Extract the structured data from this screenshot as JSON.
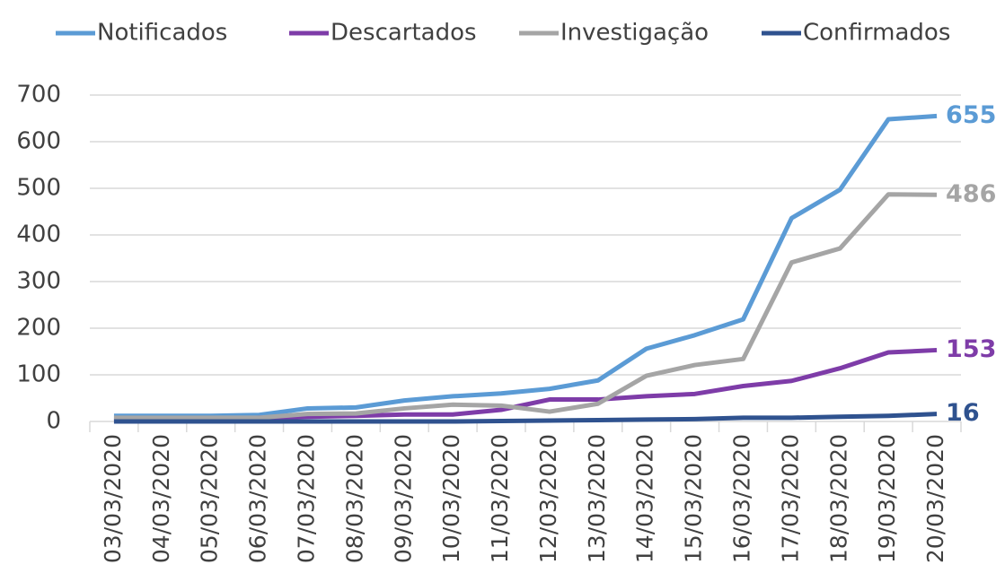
{
  "chart_data": {
    "type": "line",
    "categories": [
      "03/03/2020",
      "04/03/2020",
      "05/03/2020",
      "06/03/2020",
      "07/03/2020",
      "08/03/2020",
      "09/03/2020",
      "10/03/2020",
      "11/03/2020",
      "12/03/2020",
      "13/03/2020",
      "14/03/2020",
      "15/03/2020",
      "16/03/2020",
      "17/03/2020",
      "18/03/2020",
      "19/03/2020",
      "20/03/2020"
    ],
    "series": [
      {
        "name": "Notificados",
        "color": "#5b9bd5",
        "values": [
          12,
          12,
          12,
          14,
          28,
          30,
          45,
          54,
          60,
          70,
          88,
          156,
          185,
          219,
          436,
          497,
          648,
          655
        ]
      },
      {
        "name": "Descartados",
        "color": "#7e3ca8",
        "values": [
          2,
          3,
          5,
          8,
          10,
          12,
          15,
          15,
          25,
          47,
          47,
          54,
          59,
          76,
          87,
          114,
          148,
          153
        ]
      },
      {
        "name": "Investigação",
        "color": "#a5a5a5",
        "values": [
          8,
          8,
          8,
          8,
          16,
          17,
          28,
          36,
          34,
          21,
          38,
          98,
          121,
          134,
          341,
          371,
          487,
          486
        ]
      },
      {
        "name": "Confirmados",
        "color": "#2f528f",
        "values": [
          0,
          0,
          0,
          0,
          0,
          0,
          0,
          0,
          1,
          2,
          3,
          4,
          5,
          8,
          8,
          10,
          12,
          16
        ]
      }
    ],
    "ylim": [
      0,
      700
    ],
    "yticks": [
      0,
      100,
      200,
      300,
      400,
      500,
      600,
      700
    ],
    "grid": true,
    "legend": "top"
  }
}
